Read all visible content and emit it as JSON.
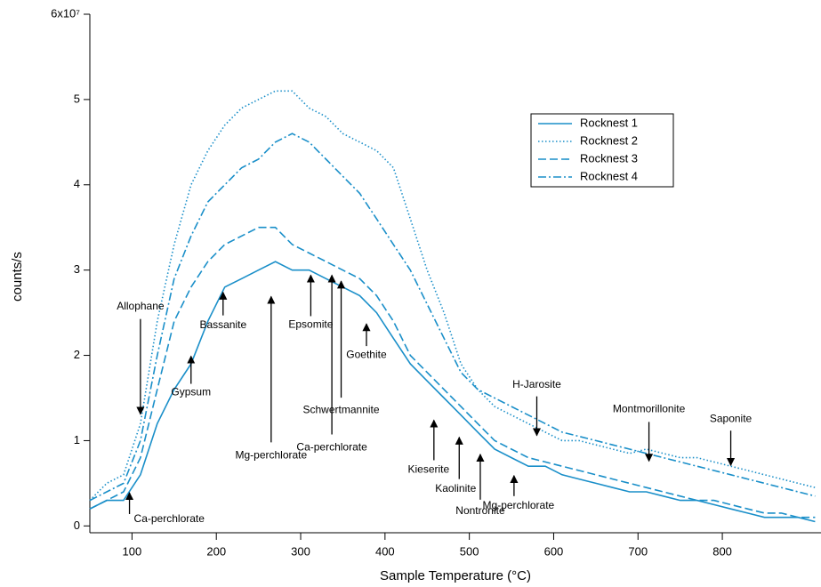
{
  "chart_data": {
    "type": "line",
    "x_label": "Sample Temperature (°C)",
    "y_label": "counts/s",
    "x": [
      50,
      70,
      90,
      110,
      130,
      150,
      170,
      190,
      210,
      230,
      250,
      270,
      290,
      310,
      330,
      350,
      370,
      390,
      410,
      430,
      450,
      470,
      490,
      510,
      530,
      550,
      570,
      590,
      610,
      630,
      650,
      670,
      690,
      710,
      730,
      750,
      770,
      790,
      810,
      830,
      850,
      870,
      890,
      910
    ],
    "series": [
      {
        "name": "Rocknest 1",
        "color": "#1a8fc9",
        "dash": "solid",
        "values": [
          0.2,
          0.3,
          0.3,
          0.6,
          1.2,
          1.6,
          1.9,
          2.4,
          2.8,
          2.9,
          3.0,
          3.1,
          3.0,
          3.0,
          2.9,
          2.8,
          2.7,
          2.5,
          2.2,
          1.9,
          1.7,
          1.5,
          1.3,
          1.1,
          0.9,
          0.8,
          0.7,
          0.7,
          0.6,
          0.55,
          0.5,
          0.45,
          0.4,
          0.4,
          0.35,
          0.3,
          0.3,
          0.25,
          0.2,
          0.15,
          0.1,
          0.1,
          0.1,
          0.05
        ]
      },
      {
        "name": "Rocknest 2",
        "color": "#1a8fc9",
        "dash": "dotted",
        "values": [
          0.3,
          0.5,
          0.6,
          1.2,
          2.4,
          3.3,
          4.0,
          4.4,
          4.7,
          4.9,
          5.0,
          5.1,
          5.1,
          4.9,
          4.8,
          4.6,
          4.5,
          4.4,
          4.2,
          3.6,
          3.0,
          2.5,
          1.9,
          1.6,
          1.4,
          1.3,
          1.2,
          1.1,
          1.0,
          1.0,
          0.95,
          0.9,
          0.85,
          0.9,
          0.85,
          0.8,
          0.8,
          0.75,
          0.7,
          0.65,
          0.6,
          0.55,
          0.5,
          0.45
        ]
      },
      {
        "name": "Rocknest 3",
        "color": "#1a8fc9",
        "dash": "dashed",
        "values": [
          0.2,
          0.3,
          0.4,
          0.8,
          1.6,
          2.4,
          2.8,
          3.1,
          3.3,
          3.4,
          3.5,
          3.5,
          3.3,
          3.2,
          3.1,
          3.0,
          2.9,
          2.7,
          2.4,
          2.0,
          1.8,
          1.6,
          1.4,
          1.2,
          1.0,
          0.9,
          0.8,
          0.75,
          0.7,
          0.65,
          0.6,
          0.55,
          0.5,
          0.45,
          0.4,
          0.35,
          0.3,
          0.3,
          0.25,
          0.2,
          0.15,
          0.15,
          0.1,
          0.1
        ]
      },
      {
        "name": "Rocknest 4",
        "color": "#1a8fc9",
        "dash": "dashdot",
        "values": [
          0.3,
          0.4,
          0.5,
          1.0,
          2.0,
          2.9,
          3.4,
          3.8,
          4.0,
          4.2,
          4.3,
          4.5,
          4.6,
          4.5,
          4.3,
          4.1,
          3.9,
          3.6,
          3.3,
          3.0,
          2.6,
          2.2,
          1.8,
          1.6,
          1.5,
          1.4,
          1.3,
          1.2,
          1.1,
          1.05,
          1.0,
          0.95,
          0.9,
          0.85,
          0.8,
          0.75,
          0.7,
          0.65,
          0.6,
          0.55,
          0.5,
          0.45,
          0.4,
          0.35
        ]
      }
    ],
    "xlim": [
      50,
      917
    ],
    "ylim": [
      -0.08,
      6
    ],
    "xticks": [
      100,
      200,
      300,
      400,
      500,
      600,
      700,
      800
    ],
    "yticks": [
      0,
      1,
      2,
      3,
      4,
      5,
      {
        "value": 6,
        "label": "6x10⁷"
      }
    ],
    "legend": "upper right",
    "annotations": [
      {
        "text": "Ca-perchlorate",
        "x": 97,
        "y": 0.4
      },
      {
        "text": "Allophane",
        "x": 110,
        "y": 1.3
      },
      {
        "text": "Gypsum",
        "x": 170,
        "y": 2.0
      },
      {
        "text": "Bassanite",
        "x": 208,
        "y": 2.75
      },
      {
        "text": "Mg-perchlorate",
        "x": 265,
        "y": 2.7
      },
      {
        "text": "Epsomite",
        "x": 312,
        "y": 2.95
      },
      {
        "text": "Ca-perchlorate",
        "x": 337,
        "y": 2.95
      },
      {
        "text": "Schwertmannite",
        "x": 348,
        "y": 2.88
      },
      {
        "text": "Goethite",
        "x": 378,
        "y": 2.38
      },
      {
        "text": "Kieserite",
        "x": 458,
        "y": 1.25
      },
      {
        "text": "Kaolinite",
        "x": 488,
        "y": 1.05
      },
      {
        "text": "Nontronite",
        "x": 513,
        "y": 0.85
      },
      {
        "text": "Mg-perchlorate",
        "x": 553,
        "y": 0.6
      },
      {
        "text": "H-Jarosite",
        "x": 580,
        "y": 1.05
      },
      {
        "text": "Montmorillonite",
        "x": 713,
        "y": 0.75
      },
      {
        "text": "Saponite",
        "x": 810,
        "y": 0.7
      }
    ]
  }
}
